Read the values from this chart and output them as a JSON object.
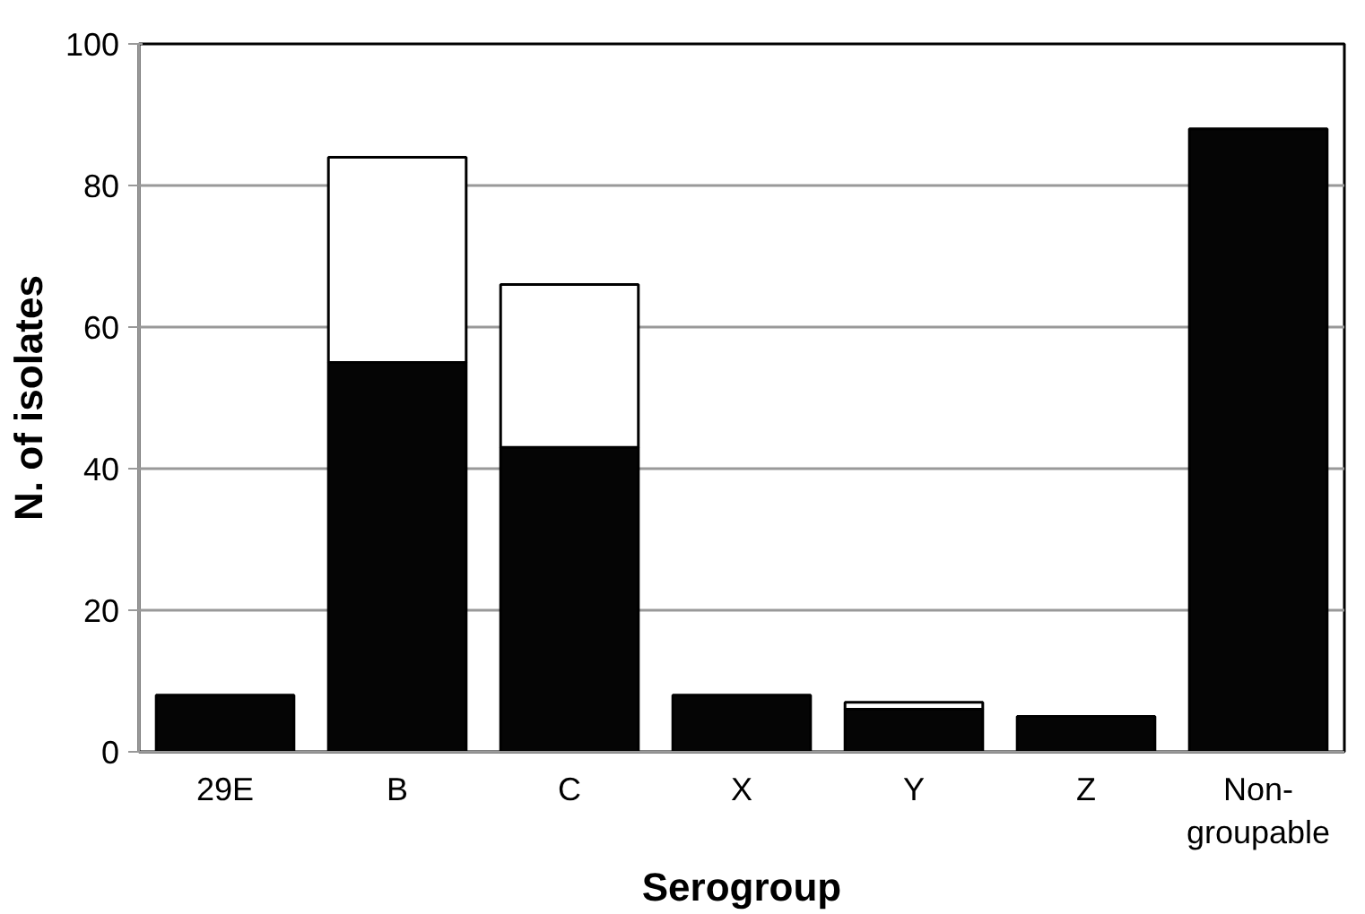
{
  "chart_data": {
    "type": "bar",
    "stacked": true,
    "xlabel": "Serogroup",
    "ylabel": "N. of isolates",
    "categories": [
      "29E",
      "B",
      "C",
      "X",
      "Y",
      "Z",
      "Non-\ngroupable"
    ],
    "series": [
      {
        "color": "#050505",
        "values": [
          8,
          55,
          43,
          8,
          6,
          5,
          88
        ]
      },
      {
        "color": "#ffffff",
        "values": [
          0,
          29,
          23,
          0,
          1,
          0,
          0
        ]
      }
    ],
    "ylim": [
      0,
      100
    ],
    "yticks": [
      0,
      20,
      40,
      60,
      80,
      100
    ],
    "grid": "y"
  }
}
